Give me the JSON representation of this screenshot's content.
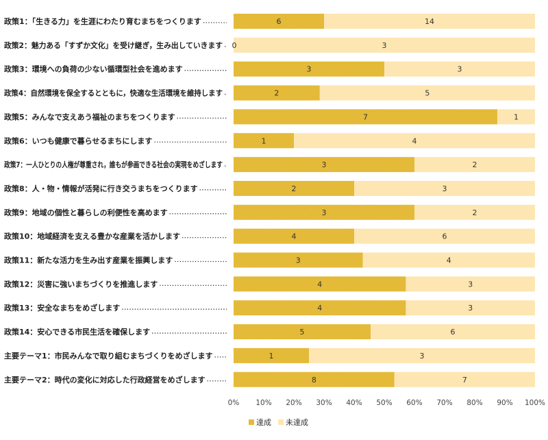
{
  "chart_data": {
    "type": "bar",
    "orientation": "horizontal",
    "stacked": "percent",
    "categories": [
      "政策1：「生きる力」を生涯にわたり育むまちをつくります",
      "政策2：魅力ある「すずか文化」を受け継ぎ，生み出していきます",
      "政策3：環境への負荷の少ない循環型社会を進めます",
      "政策4：自然環境を保全するとともに，快適な生活環境を維持します",
      "政策5：みんなで支えあう福祉のまちをつくります",
      "政策6：いつも健康で暮らせるまちにします",
      "政策7：一人ひとりの人権が尊重され，誰もが参画できる社会の実現をめざします",
      "政策8：人・物・情報が活発に行き交うまちをつくります",
      "政策9：地域の個性と暮らしの利便性を高めます",
      "政策10：地域経済を支える豊かな産業を活かします",
      "政策11：新たな活力を生み出す産業を振興します",
      "政策12：災害に強いまちづくりを推進します",
      "政策13：安全なまちをめざします",
      "政策14：安心できる市民生活を確保します",
      "主要テーマ1：市民みんなで取り組むまちづくりをめざします",
      "主要テーマ2：時代の変化に対応した行政経営をめざします"
    ],
    "series": [
      {
        "name": "達成",
        "color": "#e6bc3b",
        "values": [
          6,
          0,
          3,
          2,
          7,
          1,
          3,
          2,
          3,
          4,
          3,
          4,
          4,
          5,
          1,
          8
        ]
      },
      {
        "name": "未達成",
        "color": "#fde6b1",
        "values": [
          14,
          3,
          3,
          5,
          1,
          4,
          2,
          3,
          2,
          6,
          4,
          3,
          3,
          6,
          3,
          7
        ]
      }
    ],
    "x_ticks": [
      "0%",
      "10%",
      "20%",
      "30%",
      "40%",
      "50%",
      "60%",
      "70%",
      "80%",
      "90%",
      "100%"
    ],
    "xlim": [
      0,
      100
    ],
    "legend_position": "bottom",
    "title": "",
    "xlabel": "",
    "ylabel": ""
  }
}
